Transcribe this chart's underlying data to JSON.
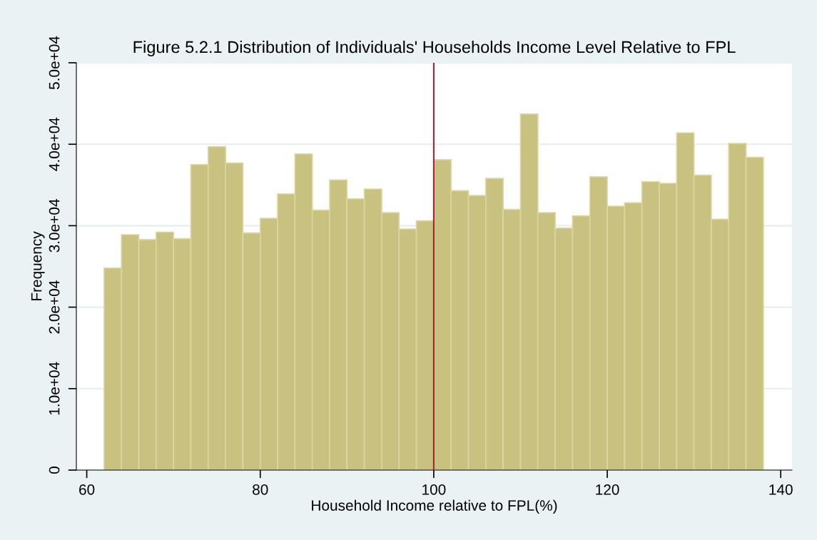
{
  "chart_data": {
    "type": "histogram",
    "title": "Figure 5.2.1 Distribution of Individuals' Households Income Level Relative to FPL",
    "xlabel": "Household Income relative to FPL(%)",
    "ylabel": "Frequency",
    "bins": [
      62,
      64,
      66,
      68,
      70,
      72,
      74,
      76,
      78,
      80,
      82,
      84,
      86,
      88,
      90,
      92,
      94,
      96,
      98,
      100,
      102,
      104,
      106,
      108,
      110,
      112,
      114,
      116,
      118,
      120,
      122,
      124,
      126,
      128,
      130,
      132,
      134,
      136,
      138
    ],
    "values": [
      24800,
      28900,
      28300,
      29200,
      28400,
      37500,
      39700,
      37700,
      29100,
      30900,
      33900,
      38800,
      31900,
      35600,
      33300,
      34500,
      31600,
      29600,
      30600,
      38100,
      34300,
      33700,
      35800,
      32000,
      43700,
      31600,
      29700,
      31200,
      36000,
      32400,
      32800,
      35400,
      35200,
      41400,
      36200,
      30800,
      40100,
      38400
    ],
    "color": "#c9c17f",
    "xlim": [
      58.8,
      141.3
    ],
    "xticks": [
      60,
      80,
      100,
      120,
      140
    ],
    "ylim": [
      0,
      50000
    ],
    "yticks": [
      {
        "value": 0,
        "label": "0"
      },
      {
        "value": 10000,
        "label": "1.0e+04"
      },
      {
        "value": 20000,
        "label": "2.0e+04"
      },
      {
        "value": 30000,
        "label": "3.0e+04"
      },
      {
        "value": 40000,
        "label": "4.0e+04"
      },
      {
        "value": 50000,
        "label": "5.0e+04"
      }
    ],
    "grid": "y",
    "ref_lines": [
      {
        "axis": "x",
        "value": 100,
        "color": "#a0282d"
      }
    ]
  }
}
